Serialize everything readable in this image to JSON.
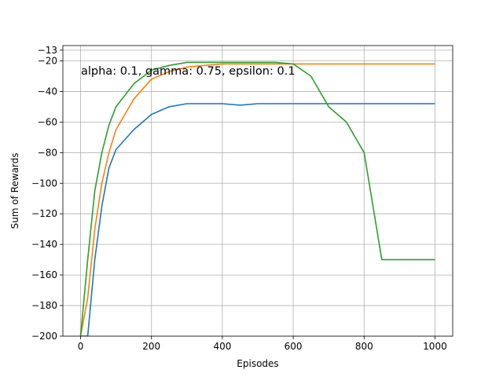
{
  "chart_data": {
    "type": "line",
    "title": "",
    "xlabel": "Episodes",
    "ylabel": "Sum of Rewards",
    "xlim": [
      -50,
      1050
    ],
    "ylim": [
      -200,
      -10
    ],
    "x_ticks": [
      0,
      200,
      400,
      600,
      800,
      1000
    ],
    "y_ticks": [
      -200,
      -180,
      -160,
      -140,
      -120,
      -100,
      -80,
      -60,
      -40,
      -20,
      -13
    ],
    "x_tick_labels": [
      "0",
      "200",
      "400",
      "600",
      "800",
      "1000"
    ],
    "y_tick_labels": [
      "−200",
      "−180",
      "−160",
      "−140",
      "−120",
      "−100",
      "−80",
      "−60",
      "−40",
      "−20",
      "−13"
    ],
    "grid": true,
    "legend": "none",
    "annotation": "alpha: 0.1, gamma: 0.75, epsilon: 0.1",
    "series": [
      {
        "color": "#1f77b4",
        "x": [
          0,
          20,
          40,
          60,
          80,
          100,
          150,
          200,
          250,
          300,
          350,
          400,
          450,
          500,
          550,
          600,
          650,
          700,
          750,
          800,
          850,
          900,
          950,
          1000
        ],
        "values": [
          -200,
          -200,
          -150,
          -115,
          -90,
          -78,
          -65,
          -55,
          -50,
          -48,
          -48,
          -48,
          -49,
          -48,
          -48,
          -48,
          -48,
          -48,
          -48,
          -48,
          -48,
          -48,
          -48,
          -48
        ]
      },
      {
        "color": "#ff7f0e",
        "x": [
          0,
          20,
          40,
          60,
          80,
          100,
          150,
          200,
          250,
          300,
          350,
          400,
          450,
          500,
          550,
          600,
          650,
          700,
          750,
          800,
          850,
          900,
          950,
          1000
        ],
        "values": [
          -200,
          -175,
          -130,
          -100,
          -80,
          -65,
          -45,
          -32,
          -27,
          -24,
          -23,
          -22,
          -22,
          -22,
          -22,
          -22,
          -22,
          -22,
          -22,
          -22,
          -22,
          -22,
          -22,
          -22
        ]
      },
      {
        "color": "#2ca02c",
        "x": [
          0,
          20,
          40,
          60,
          80,
          100,
          150,
          200,
          250,
          300,
          350,
          400,
          450,
          500,
          550,
          600,
          650,
          700,
          750,
          800,
          850,
          900,
          950,
          1000
        ],
        "values": [
          -200,
          -150,
          -105,
          -80,
          -62,
          -50,
          -35,
          -26,
          -23,
          -21,
          -21,
          -21,
          -21,
          -21,
          -21,
          -22,
          -30,
          -50,
          -60,
          -80,
          -150,
          -150,
          -150,
          -150
        ]
      }
    ]
  }
}
